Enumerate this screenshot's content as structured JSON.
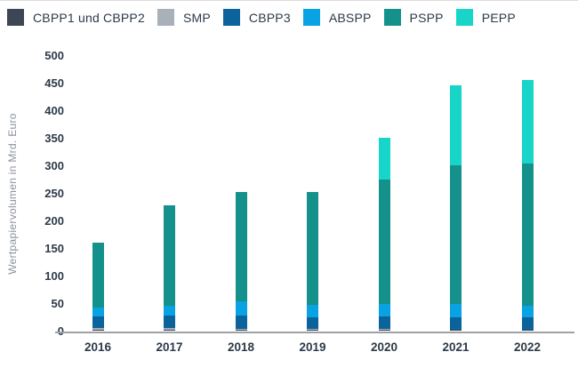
{
  "chart_data": {
    "type": "bar",
    "stacked": true,
    "title": "",
    "ylabel": "Wertpapiervolumen in Mrd. Euro",
    "xlabel": "",
    "ylim": [
      0,
      500
    ],
    "ytick_step": 50,
    "ytick_labels": [
      "0",
      "50",
      "100",
      "150",
      "200",
      "250",
      "300",
      "350",
      "400",
      "450",
      "500"
    ],
    "grid": false,
    "legend_position": "top",
    "categories": [
      "2016",
      "2017",
      "2018",
      "2019",
      "2020",
      "2021",
      "2022"
    ],
    "series": [
      {
        "name": "CBPP1 und CBPP2",
        "color": "#3c4654",
        "values": [
          2,
          2,
          1,
          1,
          1,
          1,
          1
        ]
      },
      {
        "name": "SMP",
        "color": "#a8b0b9",
        "values": [
          3,
          3,
          2,
          2,
          2,
          1,
          1
        ]
      },
      {
        "name": "CBPP3",
        "color": "#0b639c",
        "values": [
          21,
          23,
          24,
          22,
          23,
          23,
          22
        ]
      },
      {
        "name": "ABSPP",
        "color": "#09a2e3",
        "values": [
          16,
          18,
          26,
          22,
          22,
          24,
          21
        ]
      },
      {
        "name": "PSPP",
        "color": "#15918c",
        "values": [
          118,
          182,
          199,
          205,
          227,
          251,
          258
        ]
      },
      {
        "name": "PEPP",
        "color": "#17d5c9",
        "values": [
          0,
          0,
          0,
          0,
          75,
          145,
          152
        ]
      }
    ],
    "stack_totals": [
      160,
      228,
      252,
      252,
      350,
      445,
      455
    ]
  },
  "colors": {
    "tick_text": "#2c3949",
    "axis_label_text": "#8b919b",
    "axis_line": "#9da1a6",
    "background": "#ffffff"
  }
}
